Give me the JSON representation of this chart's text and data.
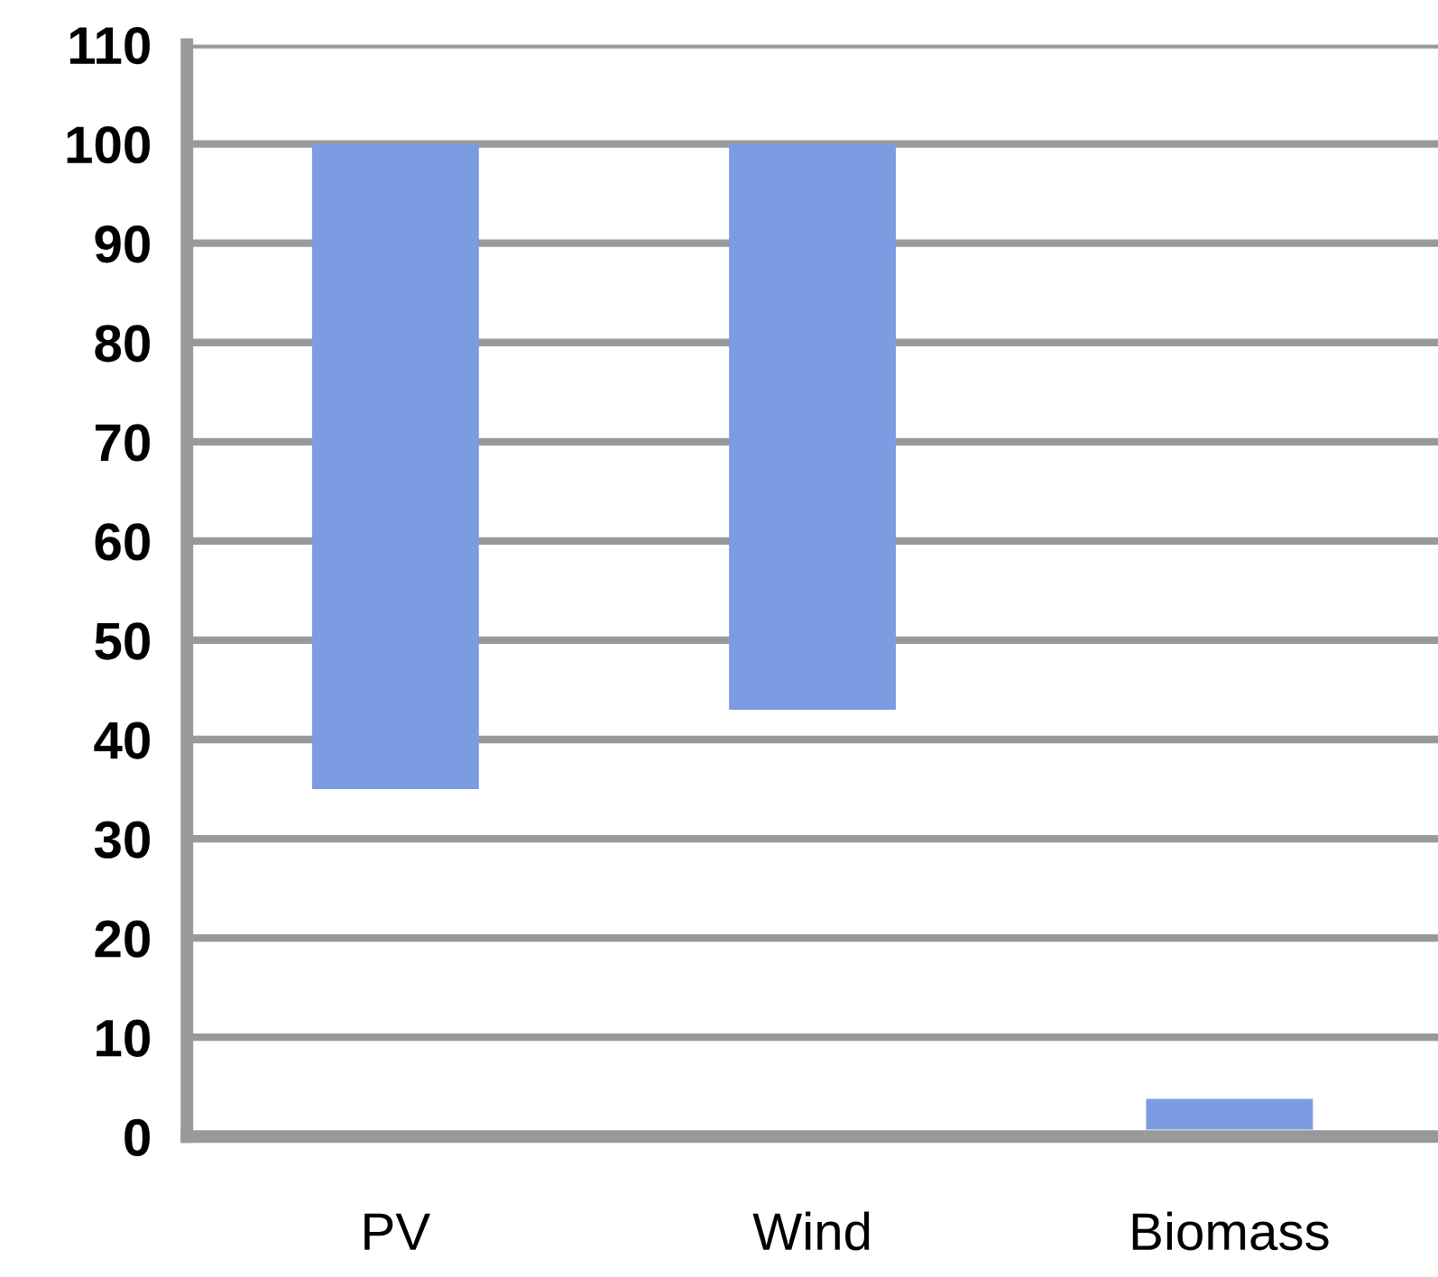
{
  "chart_data": {
    "type": "bar",
    "categories": [
      "PV",
      "Wind",
      "Biomass"
    ],
    "base": [
      35,
      43,
      0.7
    ],
    "values": [
      65,
      57,
      3.1
    ],
    "color": "#7b9be2",
    "ylim": [
      0,
      110
    ],
    "yticks": [
      0,
      10,
      20,
      30,
      40,
      50,
      60,
      70,
      80,
      90,
      100,
      110
    ],
    "grid": "y"
  }
}
